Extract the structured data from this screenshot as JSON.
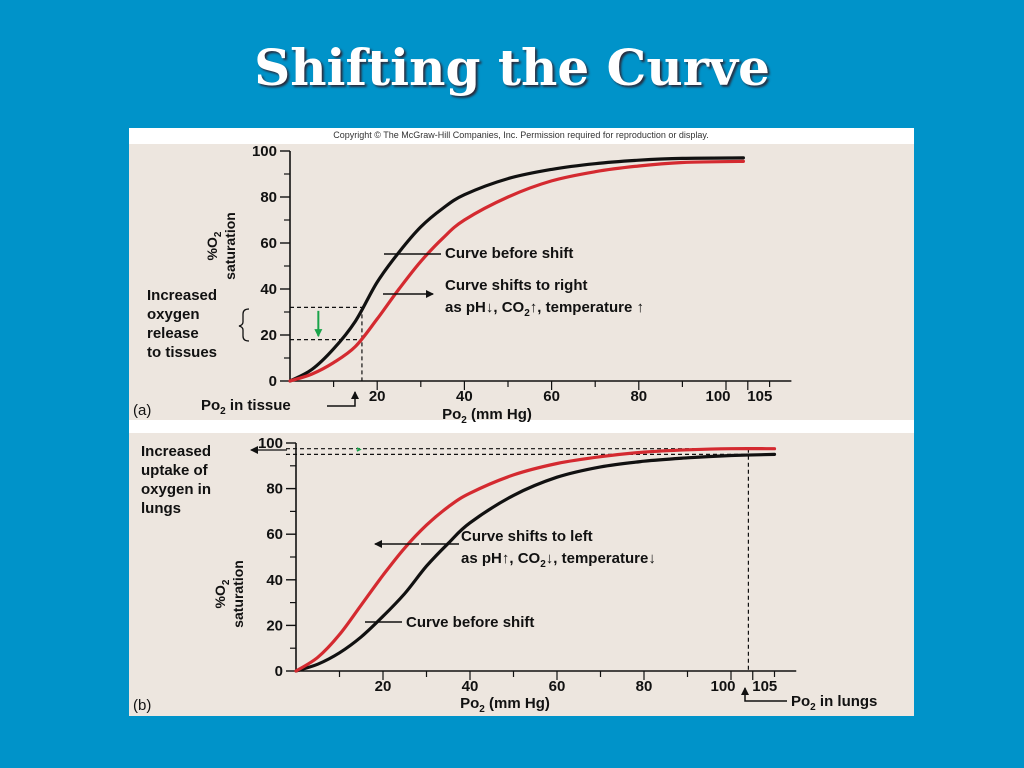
{
  "slide": {
    "title": "Shifting the Curve"
  },
  "figure": {
    "copyright": "Copyright © The McGraw-Hill Companies, Inc. Permission required for reproduction or display."
  },
  "colors": {
    "background": "#0093c9",
    "panel": "#ede6df",
    "curve_before": "#111111",
    "curve_shifted": "#d42a30",
    "green_arrow": "#1aa34a"
  },
  "chart_data": [
    {
      "type": "line",
      "panel_label": "(a)",
      "ylabel": "%O2 saturation",
      "xlabel": "Po2 (mm Hg)",
      "xlim": [
        0,
        115
      ],
      "ylim": [
        0,
        100
      ],
      "x_ticks": [
        20,
        40,
        60,
        80,
        100,
        105
      ],
      "y_ticks": [
        0,
        20,
        40,
        60,
        80,
        100
      ],
      "series": [
        {
          "name": "Curve before shift",
          "color": "#111111",
          "points": [
            [
              0,
              0
            ],
            [
              5,
              5
            ],
            [
              10,
              14
            ],
            [
              15,
              26
            ],
            [
              20,
              43
            ],
            [
              25,
              56
            ],
            [
              30,
              67
            ],
            [
              35,
              75
            ],
            [
              40,
              81
            ],
            [
              50,
              88
            ],
            [
              60,
              92
            ],
            [
              70,
              94.5
            ],
            [
              80,
              96
            ],
            [
              90,
              96.8
            ],
            [
              104,
              97
            ]
          ]
        },
        {
          "name": "Curve shifts to right",
          "color": "#d42a30",
          "points": [
            [
              0,
              0
            ],
            [
              5,
              3
            ],
            [
              10,
              8
            ],
            [
              15,
              15
            ],
            [
              20,
              27
            ],
            [
              25,
              40
            ],
            [
              30,
              52
            ],
            [
              35,
              62
            ],
            [
              40,
              70
            ],
            [
              50,
              80
            ],
            [
              60,
              87
            ],
            [
              70,
              91
            ],
            [
              80,
              93.5
            ],
            [
              90,
              95
            ],
            [
              104,
              95.5
            ]
          ]
        }
      ],
      "reference_lines": {
        "po2_tissue": 16.5,
        "saturation_before": 32,
        "saturation_after": 18
      },
      "annotations": {
        "left_note": [
          "Increased",
          "oxygen",
          "release",
          "to tissues"
        ],
        "curve_before": "Curve before shift",
        "shift_line1": "Curve shifts to right",
        "shift_line2": "as pH",
        "co2": "CO",
        "temperature": "temperature",
        "po2_tissue": "Po",
        "po2_tissue_rest": "in tissue"
      }
    },
    {
      "type": "line",
      "panel_label": "(b)",
      "ylabel": "%O2 saturation",
      "xlabel": "Po2 (mm Hg)",
      "xlim": [
        0,
        115
      ],
      "ylim": [
        0,
        100
      ],
      "x_ticks": [
        20,
        40,
        60,
        80,
        100,
        105
      ],
      "y_ticks": [
        0,
        20,
        40,
        60,
        80,
        100
      ],
      "series": [
        {
          "name": "Curve before shift",
          "color": "#111111",
          "points": [
            [
              0,
              0
            ],
            [
              5,
              3
            ],
            [
              10,
              8
            ],
            [
              15,
              15
            ],
            [
              20,
              24
            ],
            [
              25,
              34
            ],
            [
              30,
              46
            ],
            [
              35,
              56
            ],
            [
              40,
              65
            ],
            [
              50,
              77
            ],
            [
              60,
              85
            ],
            [
              70,
              89.5
            ],
            [
              80,
              92
            ],
            [
              90,
              93.5
            ],
            [
              100,
              94.5
            ],
            [
              110,
              95
            ]
          ]
        },
        {
          "name": "Curve shifts to left",
          "color": "#d42a30",
          "points": [
            [
              0,
              0
            ],
            [
              5,
              6
            ],
            [
              10,
              16
            ],
            [
              15,
              29
            ],
            [
              20,
              42
            ],
            [
              25,
              54
            ],
            [
              30,
              64
            ],
            [
              35,
              72
            ],
            [
              40,
              78
            ],
            [
              50,
              86
            ],
            [
              60,
              91
            ],
            [
              70,
              94
            ],
            [
              80,
              96
            ],
            [
              90,
              97
            ],
            [
              100,
              97.5
            ],
            [
              110,
              97.5
            ]
          ]
        }
      ],
      "reference_lines": {
        "po2_lungs": 104,
        "saturation_before": 95,
        "saturation_after": 97.5
      },
      "annotations": {
        "left_note": [
          "Increased",
          "uptake of",
          "oxygen in",
          "lungs"
        ],
        "curve_before": "Curve before shift",
        "shift_line1": "Curve shifts to left",
        "shift_line2": "as pH",
        "co2": "CO",
        "temperature": "temperature",
        "po2_lungs": "Po",
        "po2_lungs_rest": "in lungs"
      }
    }
  ]
}
